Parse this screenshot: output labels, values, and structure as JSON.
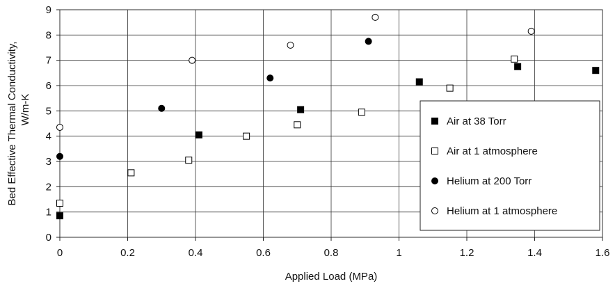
{
  "chart_data": {
    "type": "scatter",
    "title": "",
    "xlabel": "Applied Load (MPa)",
    "ylabel_lines": [
      "Bed Effective Thermal Conductivity,",
      "W/m-K"
    ],
    "xlim": [
      0,
      1.6
    ],
    "ylim": [
      0,
      9
    ],
    "x_ticks": [
      0,
      0.2,
      0.4,
      0.6,
      0.8,
      1,
      1.2,
      1.4,
      1.6
    ],
    "x_tick_labels": [
      "0",
      "0.2",
      "0.4",
      "0.6",
      "0.8",
      "1",
      "1.2",
      "1.4",
      "1.6"
    ],
    "y_ticks": [
      0,
      1,
      2,
      3,
      4,
      5,
      6,
      7,
      8,
      9
    ],
    "y_tick_labels": [
      "0",
      "1",
      "2",
      "3",
      "4",
      "5",
      "6",
      "7",
      "8",
      "9"
    ],
    "grid": true,
    "legend_position": "lower-right",
    "series": [
      {
        "name": "Air at 38 Torr",
        "marker": "square-filled",
        "x": [
          0.0,
          0.41,
          0.71,
          1.06,
          1.35,
          1.58
        ],
        "y": [
          0.85,
          4.05,
          5.05,
          6.15,
          6.75,
          6.6
        ]
      },
      {
        "name": "Air at 1 atmosphere",
        "marker": "square-open",
        "x": [
          0.0,
          0.21,
          0.38,
          0.55,
          0.7,
          0.89,
          1.15,
          1.34
        ],
        "y": [
          1.35,
          2.55,
          3.05,
          4.0,
          4.45,
          4.95,
          5.9,
          7.05
        ]
      },
      {
        "name": "Helium at 200 Torr",
        "marker": "circle-filled",
        "x": [
          0.0,
          0.3,
          0.62,
          0.91
        ],
        "y": [
          3.2,
          5.1,
          6.3,
          7.75
        ]
      },
      {
        "name": "Helium at 1 atmosphere",
        "marker": "circle-open",
        "x": [
          0.0,
          0.39,
          0.68,
          0.93,
          1.39
        ],
        "y": [
          4.35,
          7.0,
          7.6,
          8.7,
          8.15
        ]
      }
    ]
  }
}
